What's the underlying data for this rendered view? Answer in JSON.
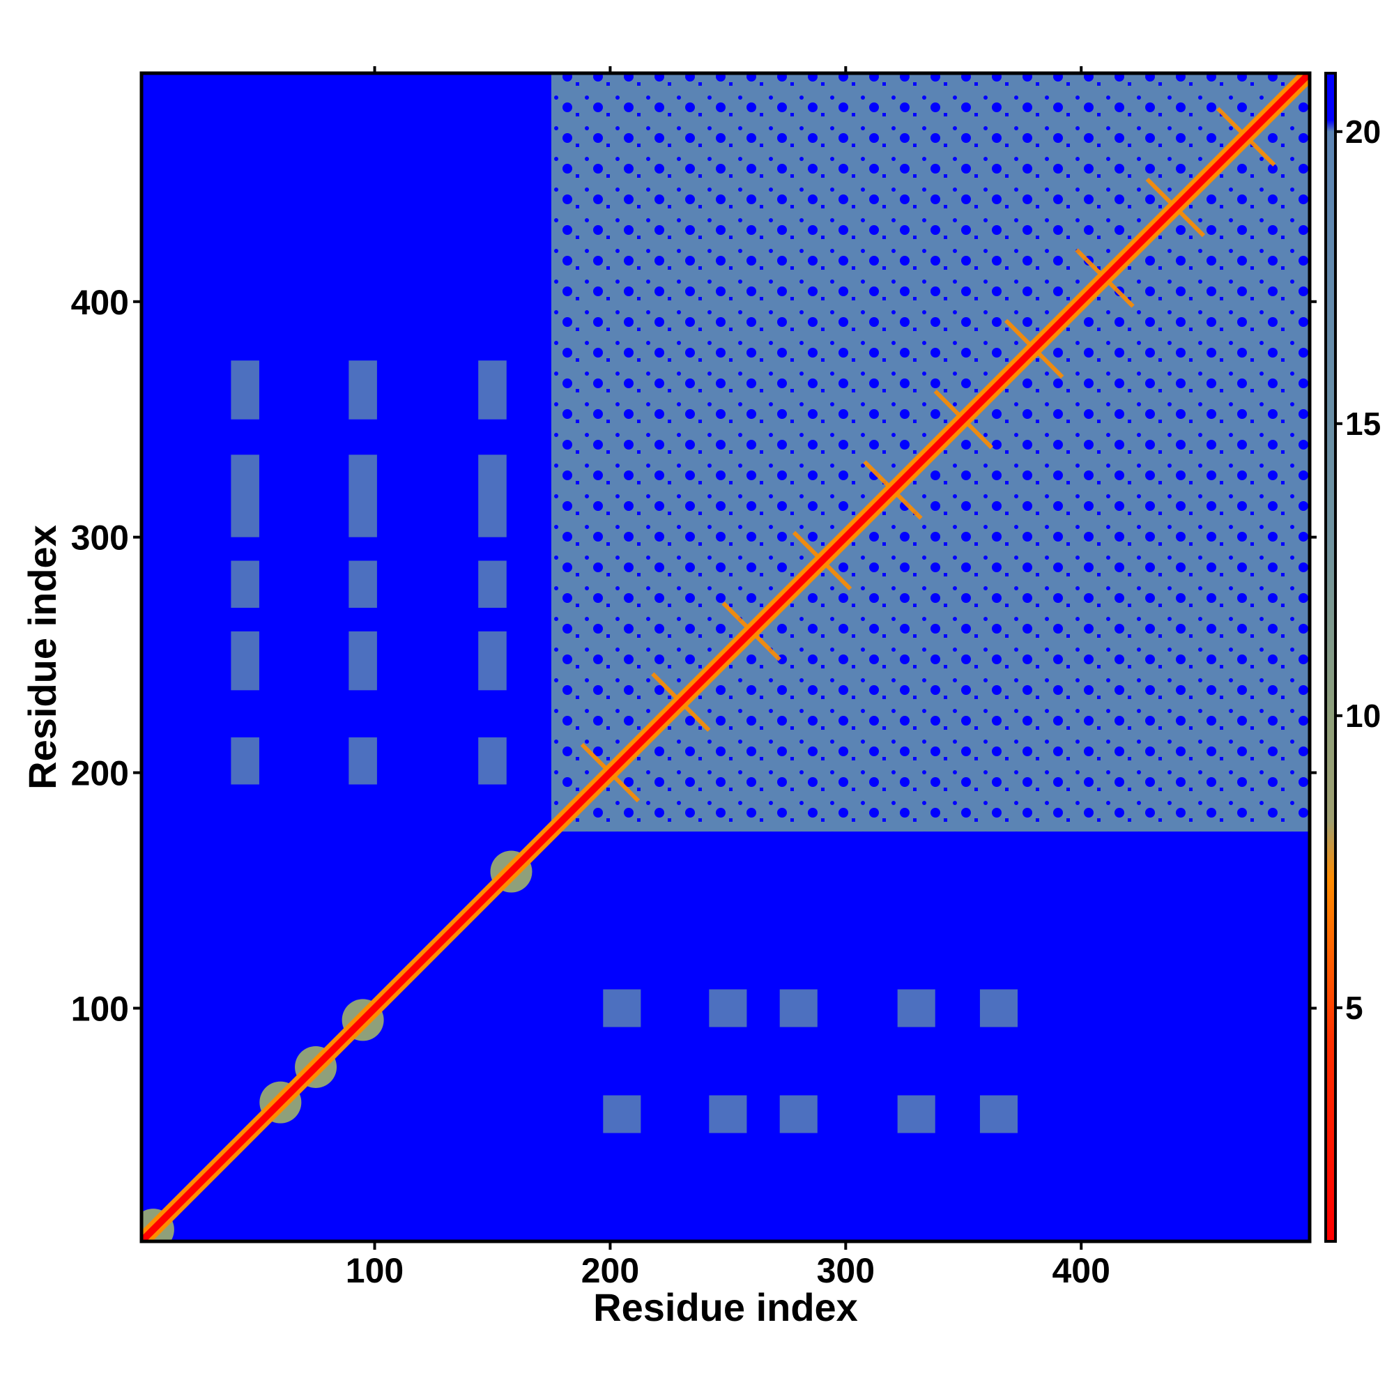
{
  "chart_data": {
    "type": "heatmap",
    "title": "",
    "xlabel": "Residue index",
    "ylabel": "Residue index",
    "xlim": [
      1,
      497
    ],
    "ylim": [
      1,
      497
    ],
    "x_ticks": [
      100,
      200,
      300,
      400
    ],
    "y_ticks": [
      100,
      200,
      300,
      400
    ],
    "x_tick_labels": [
      "100",
      "200",
      "300",
      "400"
    ],
    "y_tick_labels": [
      "100",
      "200",
      "300",
      "400"
    ],
    "matrix_description": "symmetric-style residue distance map; value scale 1-21",
    "colorbar": {
      "range": [
        1,
        21
      ],
      "ticks": [
        5,
        10,
        15,
        20
      ],
      "tick_labels": [
        "5",
        "10",
        "15",
        "20"
      ],
      "colors": {
        "low": "#ff0000",
        "mid_low": "#ff8c00",
        "mid": "#8fa07a",
        "high": "#5b84b4",
        "max": "#0000ff"
      }
    },
    "features": {
      "diagonal": {
        "from": 1,
        "to": 497
      },
      "dense_block": {
        "x_range": [
          175,
          497
        ],
        "y_range": [
          175,
          497
        ]
      },
      "diagonal_blobs": [
        6,
        60,
        75,
        95,
        158
      ],
      "sparse_lower_left_columns": [
        45,
        95,
        150
      ],
      "sparse_lower_right_rows": [
        55,
        100
      ]
    },
    "grid": false,
    "legend": "colorbar-right"
  }
}
